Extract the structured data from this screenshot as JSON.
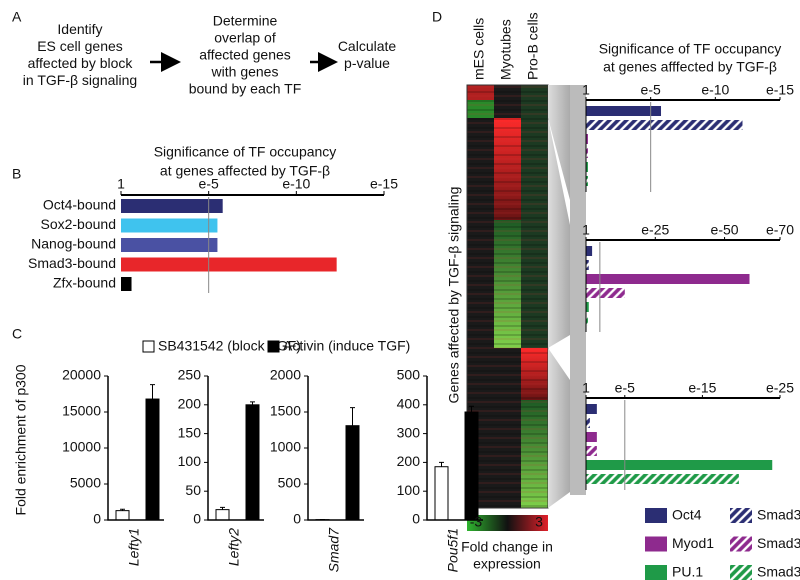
{
  "panel_labels": [
    "A",
    "B",
    "C",
    "D"
  ],
  "flow": {
    "steps": [
      [
        "Identify",
        "ES cell genes",
        "affected by block",
        "in TGF-β signaling"
      ],
      [
        "Determine",
        "overlap of",
        "affected genes",
        "with genes",
        "bound by each TF"
      ],
      [
        "Calculate",
        "p-value"
      ]
    ]
  },
  "chart_data": [
    {
      "type": "hbar",
      "title": [
        "Significance of TF occupancy",
        "at genes affected by TGF-β"
      ],
      "categories": [
        "Oct4-bound",
        "Sox2-bound",
        "Nanog-bound",
        "Smad3-bound",
        "Zfx-bound"
      ],
      "values": [
        5.8,
        5.5,
        5.5,
        12.3,
        0.6
      ],
      "colors": [
        "#2b2e73",
        "#3fc3ee",
        "#4a51a3",
        "#e8262a",
        "#000000"
      ],
      "xlim": [
        0,
        15
      ],
      "xticks": [
        {
          "value": 0,
          "label": "1"
        },
        {
          "value": 5,
          "label": "e-5"
        },
        {
          "value": 10,
          "label": "e-10"
        },
        {
          "value": 15,
          "label": "e-15"
        }
      ],
      "threshold": 5
    },
    {
      "type": "bar-panels",
      "ylabel": "Fold enrichment of p300",
      "series": [
        {
          "name": "SB431542 (block TGF)",
          "color": "#ffffff"
        },
        {
          "name": "Activin (induce TGF)",
          "color": "#000000"
        }
      ],
      "panels": [
        {
          "category": "Lefty1",
          "ylim": [
            0,
            20000
          ],
          "yticks": [
            0,
            5000,
            10000,
            15000,
            20000
          ],
          "values": [
            1300,
            16800
          ],
          "errors": [
            200,
            2000
          ]
        },
        {
          "category": "Lefty2",
          "ylim": [
            0,
            250
          ],
          "yticks": [
            0,
            50,
            100,
            150,
            200,
            250
          ],
          "values": [
            18,
            200
          ],
          "errors": [
            4,
            5
          ]
        },
        {
          "category": "Smad7",
          "ylim": [
            0,
            2000
          ],
          "yticks": [
            0,
            500,
            1000,
            1500,
            2000
          ],
          "values": [
            5,
            1310
          ],
          "errors": [
            2,
            250
          ]
        },
        {
          "category": "Pou5f1",
          "ylim": [
            0,
            500
          ],
          "yticks": [
            0,
            100,
            200,
            300,
            400,
            500
          ],
          "values": [
            185,
            375
          ],
          "errors": [
            15,
            20
          ]
        }
      ]
    },
    {
      "type": "heatmap",
      "columns": [
        "mES cells",
        "Myotubes",
        "Pro-B cells"
      ],
      "ylabel": "Genes affected by TGF-β signaling",
      "clim": [
        -3,
        3
      ],
      "cticks": [
        -3,
        3
      ],
      "colorbar_label": [
        "Fold change in",
        "expression"
      ]
    },
    {
      "type": "hbar-groups",
      "title": [
        "Significance of TF occupancy",
        "at genes afffected by TGF-β"
      ],
      "series": [
        {
          "name": "Oct4",
          "color": "#2b2e73",
          "hatch": false
        },
        {
          "name": "Smad3",
          "color": "#2b2e73",
          "hatch": true
        },
        {
          "name": "Myod1",
          "color": "#8e2a8e",
          "hatch": false
        },
        {
          "name": "Smad3",
          "color": "#8e2a8e",
          "hatch": true
        },
        {
          "name": "PU.1",
          "color": "#1f9a48",
          "hatch": false
        },
        {
          "name": "Smad3",
          "color": "#1f9a48",
          "hatch": true
        }
      ],
      "panels": [
        {
          "xlim": [
            0,
            15
          ],
          "xticks": [
            {
              "value": 0,
              "label": "1"
            },
            {
              "value": 5,
              "label": "e-5"
            },
            {
              "value": 10,
              "label": "e-10"
            },
            {
              "value": 15,
              "label": "e-15"
            }
          ],
          "values": [
            5.8,
            12.1,
            0.15,
            0.15,
            0.15,
            0.15
          ],
          "threshold": 5
        },
        {
          "xlim": [
            0,
            70
          ],
          "xticks": [
            {
              "value": 0,
              "label": "1"
            },
            {
              "value": 25,
              "label": "e-25"
            },
            {
              "value": 50,
              "label": "e-50"
            },
            {
              "value": 70,
              "label": "e-70"
            }
          ],
          "values": [
            2.2,
            1,
            59,
            14,
            1,
            0.7
          ],
          "threshold": 5
        },
        {
          "xlim": [
            0,
            25
          ],
          "xticks": [
            {
              "value": 0,
              "label": "1"
            },
            {
              "value": 5,
              "label": "e-5"
            },
            {
              "value": 15,
              "label": "e-15"
            },
            {
              "value": 25,
              "label": "e-25"
            }
          ],
          "values": [
            1.4,
            0.5,
            1.4,
            1.4,
            24,
            19.7
          ],
          "threshold": 5
        }
      ]
    }
  ]
}
